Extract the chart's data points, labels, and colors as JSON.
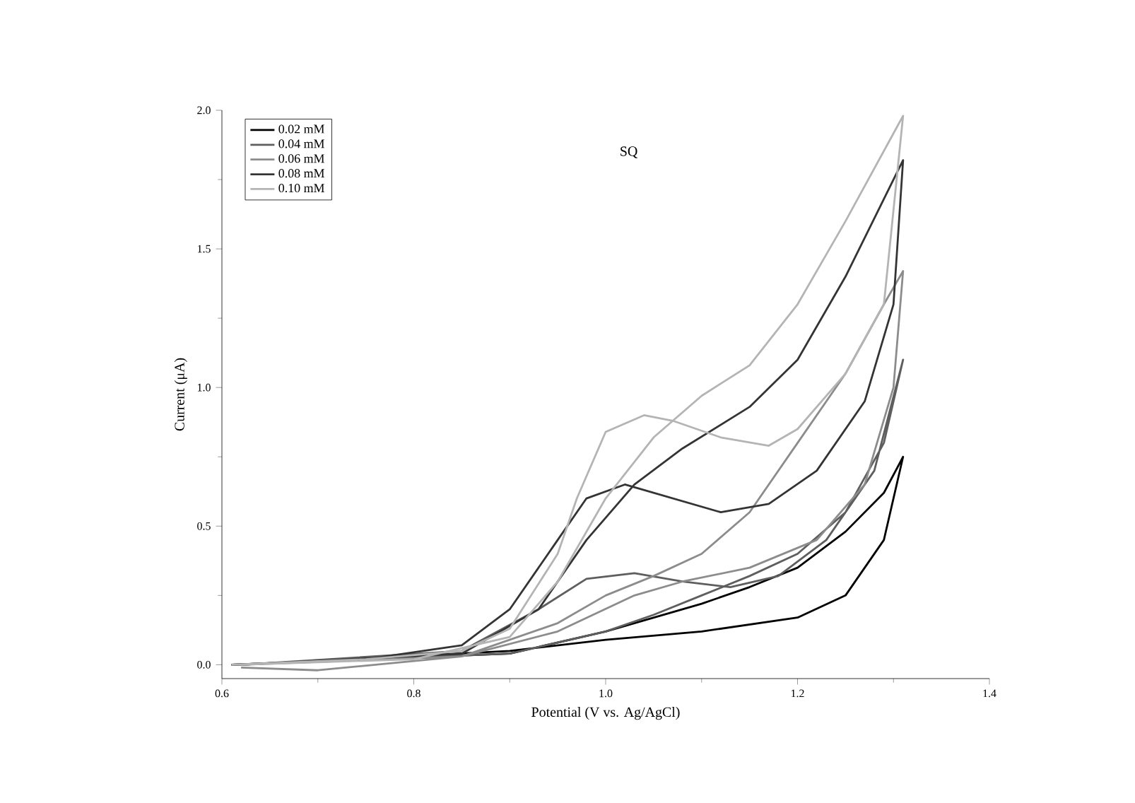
{
  "chart_data": {
    "type": "line",
    "title": "SQ",
    "xlabel": "Potential (V vs. Ag/AgCl)",
    "ylabel": "Current (μA)",
    "xlim": [
      0.6,
      1.4
    ],
    "xticks": [
      0.6,
      0.8,
      {
        "value": 1,
        "label": "1.0"
      },
      1.2,
      1.4
    ],
    "ylim": [
      -0.05,
      2.0
    ],
    "yticks": [
      {
        "value": 0,
        "label": "0.0"
      },
      0.5,
      {
        "value": 1,
        "label": "1.0"
      },
      1.5,
      {
        "value": 2,
        "label": "2.0"
      }
    ],
    "grid": false,
    "legend": "top left",
    "marker": "none",
    "line_style": "solid",
    "series": [
      {
        "name": "0.02 mM",
        "color": "#000000",
        "x": [
          0.62,
          0.9,
          1.0,
          1.1,
          1.2,
          1.25,
          1.29,
          1.31,
          1.29,
          1.25,
          1.2,
          1.15,
          1.1,
          1.0,
          0.9,
          0.61
        ],
        "values": [
          0.0,
          0.05,
          0.09,
          0.12,
          0.17,
          0.25,
          0.45,
          0.75,
          0.62,
          0.48,
          0.35,
          0.28,
          0.22,
          0.12,
          0.04,
          0.0
        ]
      },
      {
        "name": "0.04 mM",
        "color": "#5e5e5e",
        "x": [
          0.62,
          0.85,
          0.93,
          0.98,
          1.03,
          1.08,
          1.13,
          1.18,
          1.23,
          1.28,
          1.31,
          1.29,
          1.25,
          1.2,
          1.15,
          1.1,
          1.05,
          1.0,
          0.9,
          0.61
        ],
        "values": [
          0.0,
          0.05,
          0.2,
          0.31,
          0.33,
          0.3,
          0.28,
          0.32,
          0.45,
          0.7,
          1.1,
          0.8,
          0.55,
          0.4,
          0.32,
          0.25,
          0.18,
          0.12,
          0.04,
          0.0
        ]
      },
      {
        "name": "0.06 mM",
        "color": "#8c8c8c",
        "x": [
          0.62,
          0.85,
          0.95,
          1.0,
          1.05,
          1.1,
          1.15,
          1.2,
          1.25,
          1.29,
          1.31,
          1.3,
          1.27,
          1.22,
          1.15,
          1.08,
          1.03,
          0.95,
          0.85,
          0.7,
          0.62
        ],
        "values": [
          0.0,
          0.03,
          0.15,
          0.25,
          0.32,
          0.4,
          0.55,
          0.8,
          1.05,
          1.3,
          1.42,
          1.0,
          0.65,
          0.45,
          0.35,
          0.3,
          0.25,
          0.12,
          0.03,
          -0.02,
          -0.01
        ]
      },
      {
        "name": "0.08 mM",
        "color": "#343434",
        "x": [
          0.62,
          0.85,
          0.93,
          0.98,
          1.03,
          1.08,
          1.15,
          1.2,
          1.25,
          1.31,
          1.3,
          1.27,
          1.22,
          1.17,
          1.12,
          1.07,
          1.02,
          0.98,
          0.95,
          0.9,
          0.85,
          0.75,
          0.61
        ],
        "values": [
          0.0,
          0.04,
          0.2,
          0.45,
          0.65,
          0.78,
          0.93,
          1.1,
          1.4,
          1.82,
          1.3,
          0.95,
          0.7,
          0.58,
          0.55,
          0.6,
          0.65,
          0.6,
          0.45,
          0.2,
          0.07,
          0.02,
          0.0
        ]
      },
      {
        "name": "0.10 mM",
        "color": "#b4b4b4",
        "x": [
          0.62,
          0.8,
          0.9,
          0.95,
          1.0,
          1.05,
          1.1,
          1.15,
          1.2,
          1.25,
          1.31,
          1.29,
          1.25,
          1.2,
          1.17,
          1.12,
          1.07,
          1.04,
          1.0,
          0.97,
          0.95,
          0.9,
          0.85,
          0.75,
          0.61
        ],
        "values": [
          0.0,
          0.02,
          0.1,
          0.3,
          0.6,
          0.82,
          0.97,
          1.08,
          1.3,
          1.6,
          1.98,
          1.3,
          1.05,
          0.85,
          0.79,
          0.82,
          0.88,
          0.9,
          0.84,
          0.6,
          0.4,
          0.13,
          0.05,
          0.02,
          0.0
        ]
      }
    ]
  }
}
